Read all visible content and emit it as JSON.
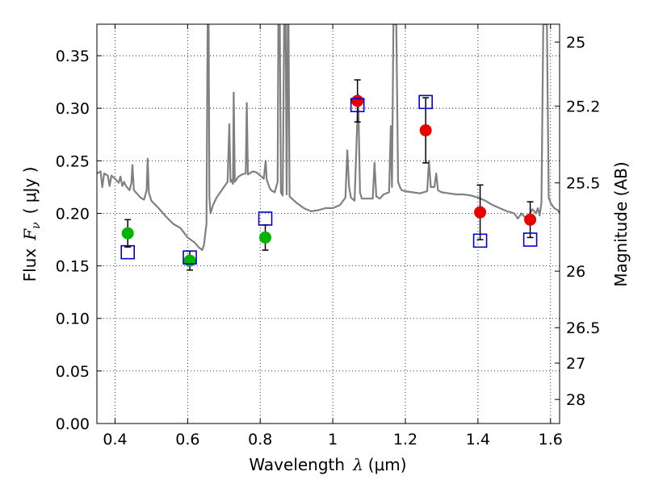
{
  "chart_data": {
    "type": "scatter",
    "title": "",
    "xlabel_text": "Wavelength",
    "xlabel_symbol": "λ",
    "xlabel_unit": "(μm)",
    "ylabel_text": "Flux",
    "ylabel_symbol": "F",
    "ylabel_subscript": "ν",
    "ylabel_unit": "( μJy )",
    "y2label": "Magnitude (AB)",
    "xlim": [
      0.35,
      1.625
    ],
    "ylim": [
      0.0,
      0.38
    ],
    "grid": true,
    "grid_style": "dotted",
    "x_ticks": [
      0.4,
      0.6,
      0.8,
      1.0,
      1.2,
      1.4,
      1.6
    ],
    "x_tick_labels": [
      "0.4",
      "0.6",
      "0.8",
      "1",
      "1.2",
      "1.4",
      "1.6"
    ],
    "y_ticks": [
      0.0,
      0.05,
      0.1,
      0.15,
      0.2,
      0.25,
      0.3,
      0.35
    ],
    "y_tick_labels": [
      "0.00",
      "0.05",
      "0.10",
      "0.15",
      "0.20",
      "0.25",
      "0.30",
      "0.35"
    ],
    "y2_ticks": [
      {
        "label": "25",
        "flux": 0.363
      },
      {
        "label": "25.2",
        "flux": 0.302
      },
      {
        "label": "25.5",
        "flux": 0.229
      },
      {
        "label": "26",
        "flux": 0.145
      },
      {
        "label": "26.5",
        "flux": 0.0912
      },
      {
        "label": "27",
        "flux": 0.0575
      },
      {
        "label": "28",
        "flux": 0.0229
      }
    ],
    "colors": {
      "spectrum": "#808080",
      "green_points": "#00b400",
      "red_points": "#e80000",
      "model_squares": "#0000cc",
      "errorbars": "#000000",
      "grid": "#000000"
    },
    "series": [
      {
        "marker": "circle",
        "color": "#00b400",
        "points": [
          {
            "x": 0.435,
            "y": 0.181,
            "err": 0.013
          },
          {
            "x": 0.606,
            "y": 0.155,
            "err": 0.009
          },
          {
            "x": 0.814,
            "y": 0.177,
            "err": 0.012
          }
        ]
      },
      {
        "marker": "circle",
        "color": "#e80000",
        "points": [
          {
            "x": 1.068,
            "y": 0.307,
            "err": 0.02
          },
          {
            "x": 1.256,
            "y": 0.279,
            "err": 0.031
          },
          {
            "x": 1.406,
            "y": 0.201,
            "err": 0.026
          },
          {
            "x": 1.544,
            "y": 0.194,
            "err": 0.017
          }
        ]
      },
      {
        "marker": "square",
        "color": "#0000cc",
        "points": [
          {
            "x": 0.435,
            "y": 0.163
          },
          {
            "x": 0.606,
            "y": 0.158
          },
          {
            "x": 0.814,
            "y": 0.195
          },
          {
            "x": 1.068,
            "y": 0.303
          },
          {
            "x": 1.256,
            "y": 0.306
          },
          {
            "x": 1.406,
            "y": 0.174
          },
          {
            "x": 1.544,
            "y": 0.175
          }
        ]
      },
      {
        "marker": "line",
        "color": "#808080",
        "points": [
          [
            0.35,
            0.238
          ],
          [
            0.36,
            0.24
          ],
          [
            0.365,
            0.225
          ],
          [
            0.37,
            0.238
          ],
          [
            0.38,
            0.236
          ],
          [
            0.385,
            0.226
          ],
          [
            0.39,
            0.236
          ],
          [
            0.4,
            0.233
          ],
          [
            0.41,
            0.229
          ],
          [
            0.415,
            0.235
          ],
          [
            0.42,
            0.226
          ],
          [
            0.425,
            0.23
          ],
          [
            0.43,
            0.226
          ],
          [
            0.44,
            0.222
          ],
          [
            0.445,
            0.229
          ],
          [
            0.448,
            0.246
          ],
          [
            0.452,
            0.222
          ],
          [
            0.46,
            0.219
          ],
          [
            0.47,
            0.215
          ],
          [
            0.48,
            0.213
          ],
          [
            0.487,
            0.222
          ],
          [
            0.49,
            0.252
          ],
          [
            0.493,
            0.22
          ],
          [
            0.5,
            0.212
          ],
          [
            0.52,
            0.205
          ],
          [
            0.54,
            0.197
          ],
          [
            0.56,
            0.19
          ],
          [
            0.58,
            0.186
          ],
          [
            0.6,
            0.177
          ],
          [
            0.62,
            0.172
          ],
          [
            0.63,
            0.168
          ],
          [
            0.64,
            0.165
          ],
          [
            0.645,
            0.17
          ],
          [
            0.652,
            0.19
          ],
          [
            0.655,
            0.38
          ],
          [
            0.658,
            0.38
          ],
          [
            0.66,
            0.215
          ],
          [
            0.663,
            0.2
          ],
          [
            0.67,
            0.208
          ],
          [
            0.68,
            0.215
          ],
          [
            0.69,
            0.22
          ],
          [
            0.7,
            0.225
          ],
          [
            0.71,
            0.23
          ],
          [
            0.715,
            0.285
          ],
          [
            0.718,
            0.23
          ],
          [
            0.72,
            0.232
          ],
          [
            0.725,
            0.228
          ],
          [
            0.727,
            0.315
          ],
          [
            0.73,
            0.23
          ],
          [
            0.74,
            0.235
          ],
          [
            0.75,
            0.237
          ],
          [
            0.76,
            0.238
          ],
          [
            0.763,
            0.305
          ],
          [
            0.766,
            0.237
          ],
          [
            0.78,
            0.24
          ],
          [
            0.79,
            0.239
          ],
          [
            0.8,
            0.236
          ],
          [
            0.81,
            0.233
          ],
          [
            0.815,
            0.25
          ],
          [
            0.818,
            0.232
          ],
          [
            0.825,
            0.225
          ],
          [
            0.83,
            0.222
          ],
          [
            0.84,
            0.22
          ],
          [
            0.848,
            0.23
          ],
          [
            0.85,
            0.38
          ],
          [
            0.854,
            0.38
          ],
          [
            0.857,
            0.22
          ],
          [
            0.862,
            0.217
          ],
          [
            0.866,
            0.38
          ],
          [
            0.87,
            0.38
          ],
          [
            0.873,
            0.218
          ],
          [
            0.876,
            0.38
          ],
          [
            0.878,
            0.38
          ],
          [
            0.881,
            0.216
          ],
          [
            0.9,
            0.21
          ],
          [
            0.92,
            0.205
          ],
          [
            0.94,
            0.202
          ],
          [
            0.96,
            0.203
          ],
          [
            0.98,
            0.205
          ],
          [
            1.0,
            0.205
          ],
          [
            1.02,
            0.208
          ],
          [
            1.035,
            0.215
          ],
          [
            1.04,
            0.26
          ],
          [
            1.045,
            0.225
          ],
          [
            1.05,
            0.215
          ],
          [
            1.06,
            0.212
          ],
          [
            1.07,
            0.313
          ],
          [
            1.075,
            0.22
          ],
          [
            1.08,
            0.214
          ],
          [
            1.1,
            0.214
          ],
          [
            1.11,
            0.214
          ],
          [
            1.115,
            0.248
          ],
          [
            1.12,
            0.216
          ],
          [
            1.13,
            0.214
          ],
          [
            1.14,
            0.218
          ],
          [
            1.155,
            0.22
          ],
          [
            1.16,
            0.283
          ],
          [
            1.163,
            0.225
          ],
          [
            1.167,
            0.38
          ],
          [
            1.175,
            0.38
          ],
          [
            1.18,
            0.23
          ],
          [
            1.185,
            0.225
          ],
          [
            1.19,
            0.222
          ],
          [
            1.2,
            0.221
          ],
          [
            1.22,
            0.22
          ],
          [
            1.24,
            0.219
          ],
          [
            1.26,
            0.221
          ],
          [
            1.265,
            0.25
          ],
          [
            1.27,
            0.225
          ],
          [
            1.28,
            0.225
          ],
          [
            1.285,
            0.238
          ],
          [
            1.29,
            0.222
          ],
          [
            1.3,
            0.22
          ],
          [
            1.32,
            0.219
          ],
          [
            1.34,
            0.218
          ],
          [
            1.36,
            0.218
          ],
          [
            1.38,
            0.217
          ],
          [
            1.4,
            0.215
          ],
          [
            1.42,
            0.212
          ],
          [
            1.44,
            0.208
          ],
          [
            1.46,
            0.205
          ],
          [
            1.48,
            0.202
          ],
          [
            1.5,
            0.2
          ],
          [
            1.51,
            0.195
          ],
          [
            1.52,
            0.2
          ],
          [
            1.53,
            0.196
          ],
          [
            1.54,
            0.198
          ],
          [
            1.55,
            0.204
          ],
          [
            1.56,
            0.2
          ],
          [
            1.565,
            0.205
          ],
          [
            1.57,
            0.198
          ],
          [
            1.575,
            0.21
          ],
          [
            1.58,
            0.38
          ],
          [
            1.59,
            0.38
          ],
          [
            1.595,
            0.215
          ],
          [
            1.6,
            0.21
          ],
          [
            1.61,
            0.205
          ],
          [
            1.62,
            0.203
          ],
          [
            1.625,
            0.2
          ]
        ]
      }
    ]
  }
}
